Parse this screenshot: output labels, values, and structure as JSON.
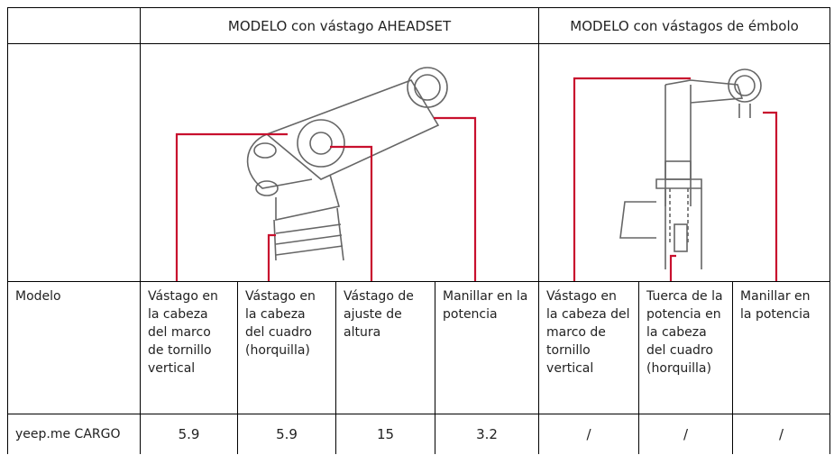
{
  "table": {
    "header": {
      "group1": "MODELO con vástago AHEADSET",
      "group2": "MODELO con vástagos de émbolo"
    },
    "rows": [
      [
        "Modelo",
        "Vástago en la cabeza del marco de tornillo vertical",
        "Vástago en la cabeza del cuadro (horquilla)",
        "Vástago de ajuste de altura",
        "Manillar en la potencia",
        "Vástago en la cabeza del marco de tornillo vertical",
        "Tuerca de la potencia en la cabeza del cuadro (horquilla)",
        "Manillar en la potencia"
      ],
      [
        "yeep.me CARGO",
        "5.9",
        "5.9",
        "15",
        "3.2",
        "/",
        "/",
        "/"
      ]
    ]
  }
}
